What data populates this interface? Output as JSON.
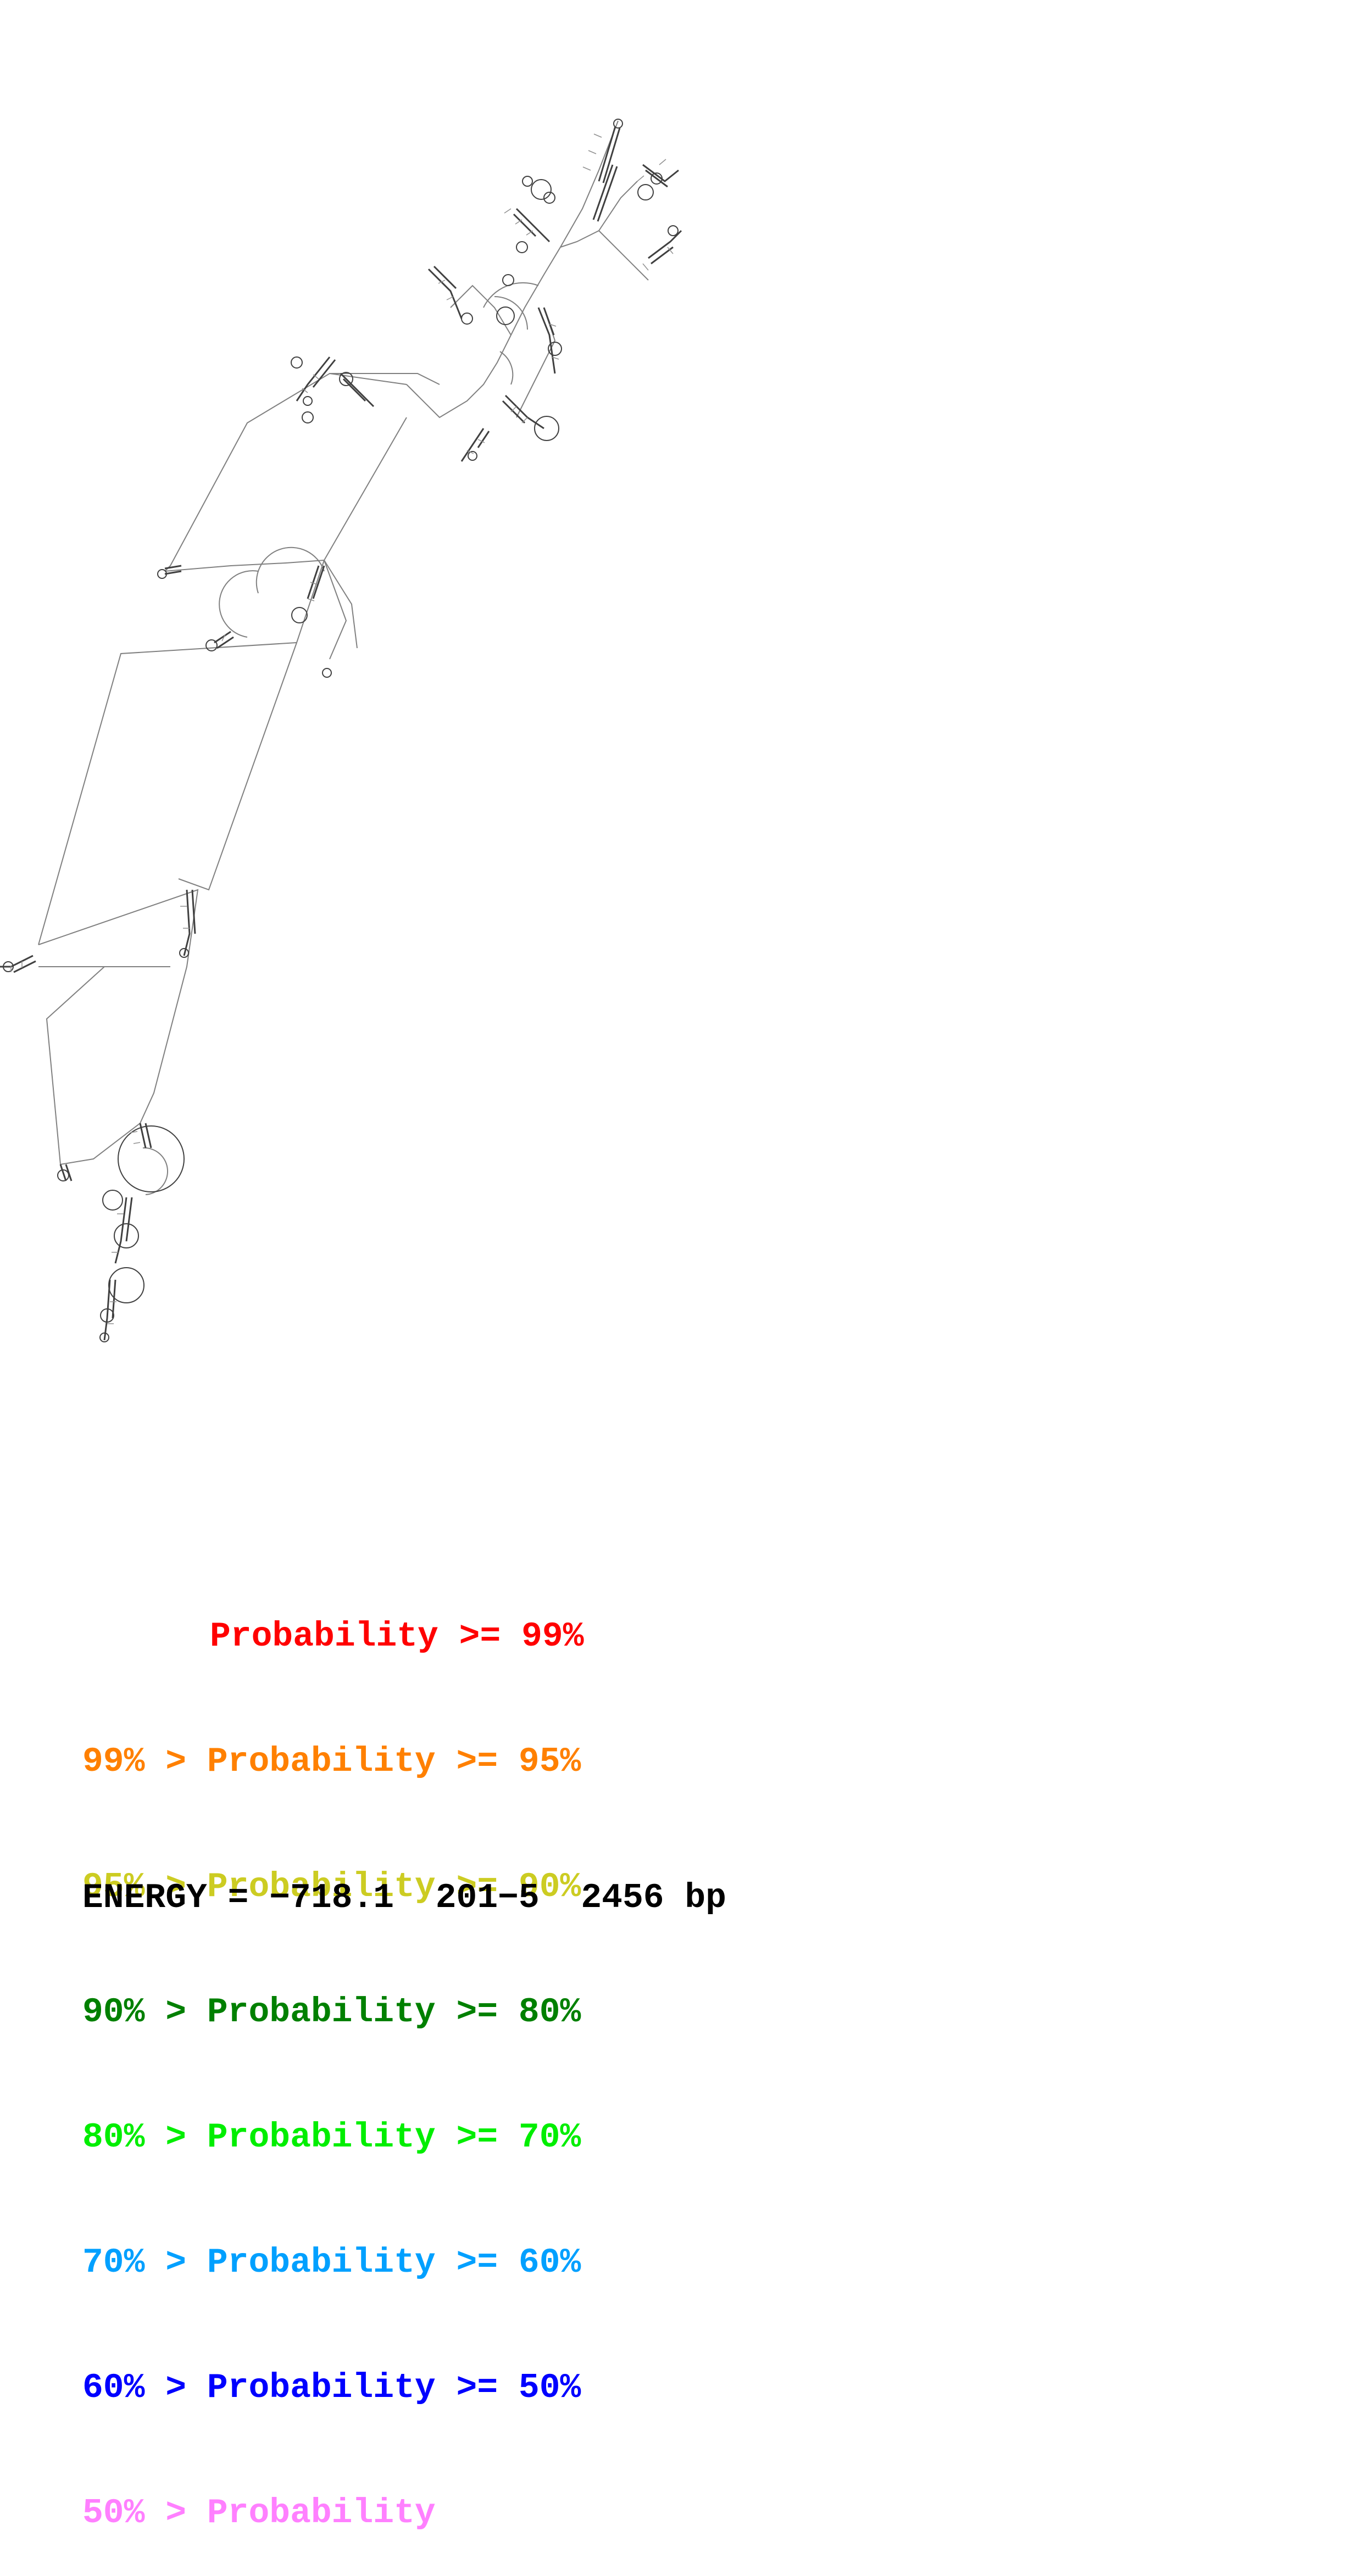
{
  "legend": {
    "rows": [
      {
        "prefix": "",
        "text": "Probability >= 99%",
        "color": "#ff0000"
      },
      {
        "prefix": "99% > ",
        "text": "Probability >= 95%",
        "color": "#ff8000"
      },
      {
        "prefix": "95% > ",
        "text": "Probability >= 90%",
        "color": "#cccc22"
      },
      {
        "prefix": "90% > ",
        "text": "Probability >= 80%",
        "color": "#008000"
      },
      {
        "prefix": "80% > ",
        "text": "Probability >= 70%",
        "color": "#00ee00"
      },
      {
        "prefix": "70% > ",
        "text": "Probability >= 60%",
        "color": "#00a0ff"
      },
      {
        "prefix": "60% > ",
        "text": "Probability >= 50%",
        "color": "#0000ff"
      },
      {
        "prefix": "50% > ",
        "text": "Probability",
        "color": "#ff80ff"
      }
    ]
  },
  "footer": {
    "energy": "ENERGY = −718.1  201−5  2456 bp"
  },
  "diagram": {
    "backbone_color": "#808080",
    "pair_color": "#404040"
  }
}
